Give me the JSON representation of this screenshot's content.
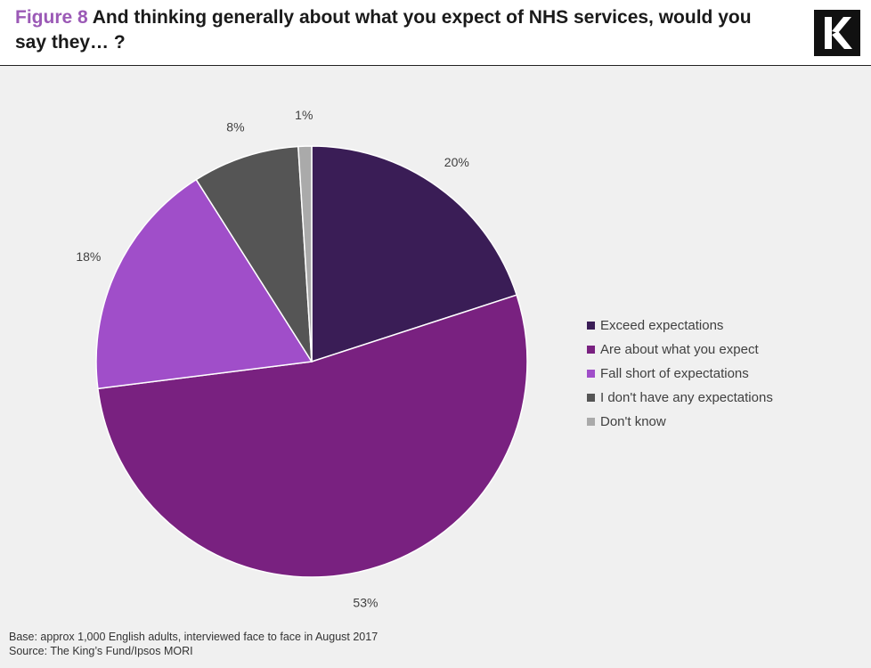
{
  "header": {
    "figure_label": "Figure 8",
    "title_text": "And thinking generally about what you expect of NHS services, would you say they… ?"
  },
  "logo": {
    "letter": "K",
    "icon": "kings-fund-k-logo"
  },
  "chart_data": {
    "type": "pie",
    "title": "And thinking generally about what you expect of NHS services, would you say they… ?",
    "categories": [
      "Exceed expectations",
      "Are about what you expect",
      "Fall short of expectations",
      "I don't have any expectations",
      "Don't know"
    ],
    "values": [
      20,
      53,
      18,
      8,
      1
    ],
    "data_labels": [
      "20%",
      "53%",
      "18%",
      "8%",
      "1%"
    ],
    "colors": [
      "#3a1d56",
      "#792180",
      "#a04ec9",
      "#555555",
      "#aaaaaa"
    ],
    "start_angle": "12 o'clock",
    "direction": "clockwise",
    "legend_position": "right"
  },
  "footer": {
    "base": "Base: approx 1,000 English adults, interviewed face to face in August 2017",
    "source": "Source: The King’s Fund/Ipsos  MORI"
  }
}
